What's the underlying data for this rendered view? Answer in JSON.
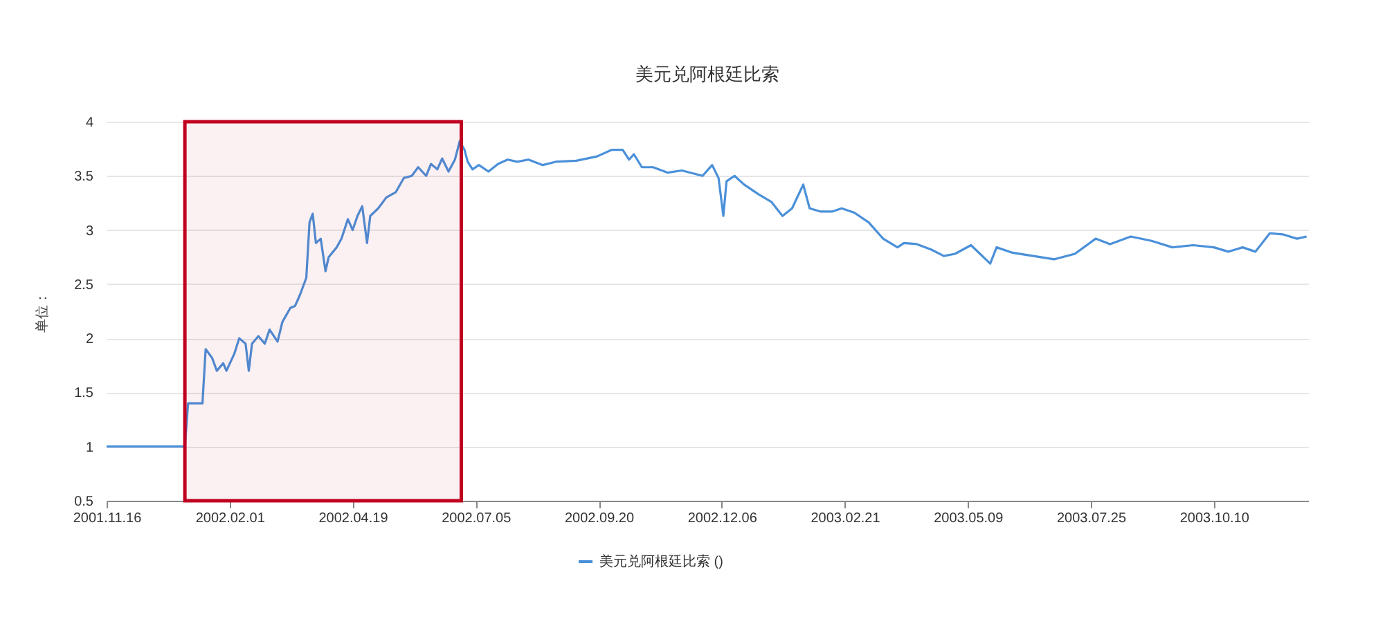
{
  "chart_data": {
    "type": "line",
    "title": "美元兑阿根廷比索",
    "ylabel": "单位：",
    "x": [
      "2001-11-16",
      "2002-01-04",
      "2002-01-06",
      "2002-01-15",
      "2002-01-17",
      "2002-01-21",
      "2002-01-24",
      "2002-01-28",
      "2002-01-30",
      "2002-02-04",
      "2002-02-07",
      "2002-02-11",
      "2002-02-13",
      "2002-02-15",
      "2002-02-19",
      "2002-02-23",
      "2002-02-26",
      "2002-03-03",
      "2002-03-06",
      "2002-03-11",
      "2002-03-14",
      "2002-03-17",
      "2002-03-21",
      "2002-03-23",
      "2002-03-25",
      "2002-03-27",
      "2002-03-30",
      "2002-04-02",
      "2002-04-04",
      "2002-04-09",
      "2002-04-12",
      "2002-04-16",
      "2002-04-19",
      "2002-04-22",
      "2002-04-25",
      "2002-04-28",
      "2002-04-30",
      "2002-05-05",
      "2002-05-10",
      "2002-05-16",
      "2002-05-21",
      "2002-05-26",
      "2002-05-30",
      "2002-06-04",
      "2002-06-07",
      "2002-06-11",
      "2002-06-14",
      "2002-06-18",
      "2002-06-22",
      "2002-06-25",
      "2002-06-28",
      "2002-06-30",
      "2002-07-03",
      "2002-07-07",
      "2002-07-13",
      "2002-07-19",
      "2002-07-25",
      "2002-07-31",
      "2002-08-07",
      "2002-08-16",
      "2002-08-24",
      "2002-09-06",
      "2002-09-19",
      "2002-09-28",
      "2002-10-05",
      "2002-10-09",
      "2002-10-12",
      "2002-10-17",
      "2002-10-24",
      "2002-11-02",
      "2002-11-11",
      "2002-11-24",
      "2002-11-30",
      "2002-12-04",
      "2002-12-07",
      "2002-12-09",
      "2002-12-14",
      "2002-12-20",
      "2002-12-29",
      "2003-01-06",
      "2003-01-13",
      "2003-01-19",
      "2003-01-26",
      "2003-01-30",
      "2003-02-06",
      "2003-02-13",
      "2003-02-19",
      "2003-02-27",
      "2003-03-08",
      "2003-03-17",
      "2003-03-26",
      "2003-03-30",
      "2003-04-07",
      "2003-04-16",
      "2003-04-24",
      "2003-05-01",
      "2003-05-11",
      "2003-05-23",
      "2003-05-27",
      "2003-06-06",
      "2003-06-19",
      "2003-07-02",
      "2003-07-15",
      "2003-07-28",
      "2003-08-06",
      "2003-08-19",
      "2003-09-01",
      "2003-09-14",
      "2003-09-27",
      "2003-10-10",
      "2003-10-19",
      "2003-10-28",
      "2003-11-05",
      "2003-11-14",
      "2003-11-22",
      "2003-12-01",
      "2003-12-07"
    ],
    "series": [
      {
        "name": "美元兑阿根廷比索 ()",
        "color": "#4a90d9",
        "values": [
          1.0,
          1.0,
          1.4,
          1.4,
          1.9,
          1.82,
          1.7,
          1.77,
          1.7,
          1.86,
          2.0,
          1.95,
          1.7,
          1.95,
          2.02,
          1.95,
          2.08,
          1.97,
          2.15,
          2.28,
          2.3,
          2.4,
          2.56,
          3.07,
          3.15,
          2.88,
          2.92,
          2.62,
          2.75,
          2.84,
          2.92,
          3.1,
          3.0,
          3.13,
          3.22,
          2.88,
          3.13,
          3.2,
          3.3,
          3.35,
          3.48,
          3.5,
          3.58,
          3.5,
          3.61,
          3.56,
          3.66,
          3.54,
          3.65,
          3.82,
          3.74,
          3.63,
          3.56,
          3.6,
          3.54,
          3.61,
          3.65,
          3.63,
          3.65,
          3.6,
          3.63,
          3.64,
          3.68,
          3.74,
          3.74,
          3.65,
          3.7,
          3.58,
          3.58,
          3.53,
          3.55,
          3.5,
          3.6,
          3.48,
          3.13,
          3.45,
          3.5,
          3.42,
          3.33,
          3.26,
          3.13,
          3.2,
          3.42,
          3.2,
          3.17,
          3.17,
          3.2,
          3.16,
          3.07,
          2.92,
          2.84,
          2.88,
          2.87,
          2.82,
          2.76,
          2.78,
          2.86,
          2.69,
          2.84,
          2.79,
          2.76,
          2.73,
          2.78,
          2.92,
          2.87,
          2.94,
          2.9,
          2.84,
          2.86,
          2.84,
          2.8,
          2.84,
          2.8,
          2.97,
          2.96,
          2.92,
          2.94
        ]
      }
    ],
    "xlim": [
      "2001-11-16",
      "2003-12-08"
    ],
    "xticks": [
      {
        "value": "2001-11-16",
        "label": "2001.11.16"
      },
      {
        "value": "2002-02-01",
        "label": "2002.02.01"
      },
      {
        "value": "2002-04-19",
        "label": "2002.04.19"
      },
      {
        "value": "2002-07-05",
        "label": "2002.07.05"
      },
      {
        "value": "2002-09-20",
        "label": "2002.09.20"
      },
      {
        "value": "2002-12-06",
        "label": "2002.12.06"
      },
      {
        "value": "2003-02-21",
        "label": "2003.02.21"
      },
      {
        "value": "2003-05-09",
        "label": "2003.05.09"
      },
      {
        "value": "2003-07-25",
        "label": "2003.07.25"
      },
      {
        "value": "2003-10-10",
        "label": "2003.10.10"
      }
    ],
    "ylim": [
      0.5,
      4
    ],
    "yticks": [
      0.5,
      1,
      1.5,
      2,
      2.5,
      3,
      3.5,
      4
    ],
    "bands": [
      {
        "axis": "x",
        "from": "2002-01-04",
        "to": "2002-06-26",
        "color": "#c00020"
      }
    ],
    "grid": "y",
    "legend": "bottom",
    "marker": "none",
    "line_style": "solid"
  }
}
